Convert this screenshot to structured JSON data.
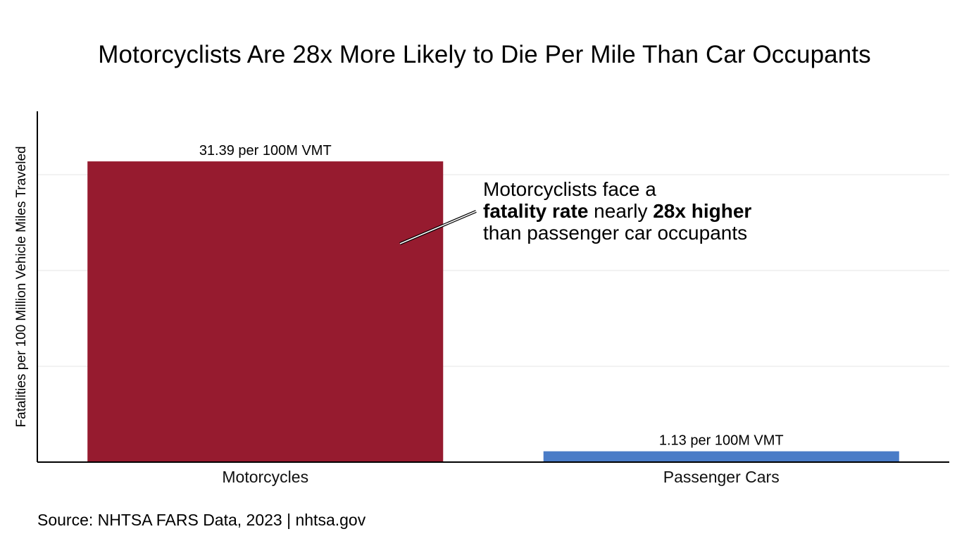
{
  "chart_data": {
    "type": "bar",
    "title": "Motorcyclists Are 28x More Likely to Die Per Mile Than Car Occupants",
    "ylabel": "Fatalities per 100 Million Vehicle Miles Traveled",
    "xlabel": "",
    "categories": [
      "Motorcycles",
      "Passenger Cars"
    ],
    "values": [
      31.39,
      1.13
    ],
    "data_labels": [
      "31.39 per 100M VMT",
      "1.13 per 100M VMT"
    ],
    "colors": [
      "#961b2f",
      "#4a7cc7"
    ],
    "ylim": [
      0,
      40
    ],
    "y_gridlines": [
      10,
      20,
      30
    ],
    "grid": true,
    "y_tick_labels_shown": false,
    "annotation": {
      "line1": "Motorcyclists face a",
      "line2_bold_a": "fatality rate",
      "line2_mid": " nearly ",
      "line2_bold_b": "28x higher",
      "line3": "than passenger car occupants"
    },
    "source": "Source: NHTSA FARS Data, 2023 | nhtsa.gov"
  }
}
